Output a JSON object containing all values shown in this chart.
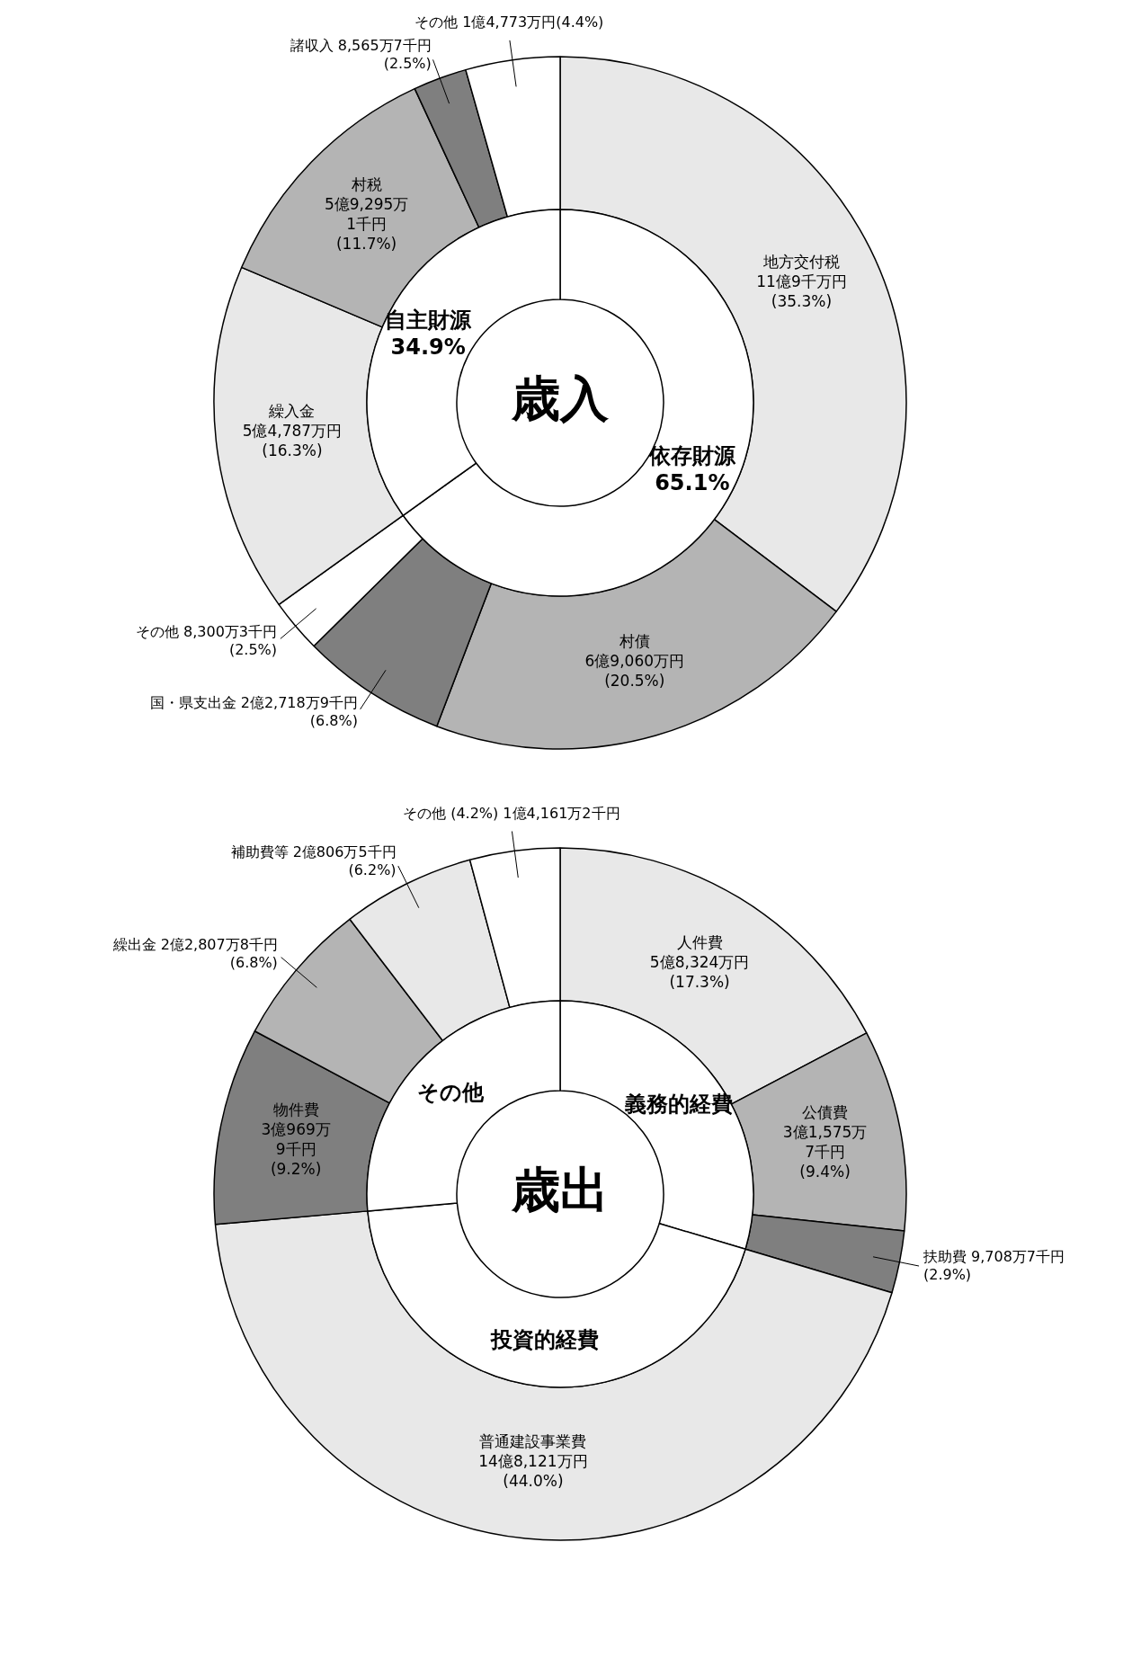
{
  "chart_data": [
    {
      "type": "donut",
      "categories": [
        "地方交付税",
        "村債",
        "国・県支出金",
        "その他",
        "繰入金",
        "村税",
        "諸収入",
        "その他"
      ],
      "values": [
        35.3,
        20.5,
        6.8,
        2.5,
        16.3,
        11.7,
        2.5,
        4.4
      ],
      "colors": [
        "#e8e8e8",
        "#b4b4b4",
        "#7f7f7f",
        "#ffffff",
        "#e8e8e8",
        "#b4b4b4",
        "#7f7f7f",
        "#ffffff"
      ],
      "value_labels": [
        "11億9千万円\n(35.3%)",
        "6億9,060万円\n(20.5%)",
        "2億2,718万9千円\n(6.8%)",
        "8,300万3千円\n(2.5%)",
        "5億4,787万円\n(16.3%)",
        "5億9,295万\n1千円\n(11.7%)",
        "8,565万7千円\n(2.5%)",
        "1億4,773万円(4.4%)"
      ]
    },
    {
      "type": "donut",
      "title": "歳入",
      "categories": [
        "依存財源",
        "自主財源"
      ],
      "values": [
        65.1,
        34.9
      ],
      "colors": [
        "#ffffff",
        "#ffffff"
      ],
      "value_labels": [
        "65.1%",
        "34.9%"
      ]
    },
    {
      "type": "donut",
      "categories": [
        "人件費",
        "公債費",
        "扶助費",
        "普通建設事業費",
        "物件費",
        "繰出金",
        "補助費等",
        "その他"
      ],
      "values": [
        17.3,
        9.4,
        2.9,
        44.0,
        9.2,
        6.8,
        6.2,
        4.2
      ],
      "colors": [
        "#e8e8e8",
        "#b4b4b4",
        "#7f7f7f",
        "#e8e8e8",
        "#7f7f7f",
        "#b4b4b4",
        "#e8e8e8",
        "#ffffff"
      ],
      "value_labels": [
        "5億8,324万円\n(17.3%)",
        "3億1,575万\n7千円\n(9.4%)",
        "9,708万7千円\n(2.9%)",
        "14億8,121万円\n(44.0%)",
        "3億969万\n9千円\n(9.2%)",
        "2億2,807万8千円\n(6.8%)",
        "2億806万5千円\n(6.2%)",
        "(4.2%) 1億4,161万2千円"
      ]
    },
    {
      "type": "donut",
      "title": "歳出",
      "categories": [
        "義務的経費",
        "投資的経費",
        "その他"
      ],
      "values": [
        29.6,
        44.0,
        26.4
      ],
      "colors": [
        "#ffffff",
        "#ffffff",
        "#ffffff"
      ]
    }
  ]
}
